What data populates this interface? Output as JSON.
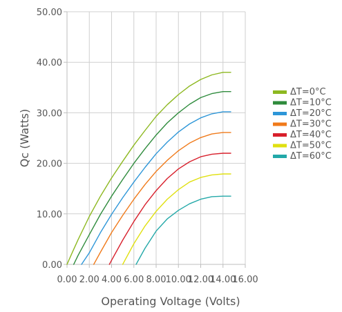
{
  "chart_data": {
    "type": "line",
    "title": "",
    "xlabel": "Operating Voltage (Volts)",
    "ylabel": "Qc (Watts)",
    "xlim": [
      0,
      16
    ],
    "ylim": [
      0,
      50
    ],
    "x_ticks": [
      0,
      2,
      4,
      6,
      8,
      10,
      12,
      14,
      16
    ],
    "y_ticks": [
      0,
      10,
      20,
      30,
      40,
      50
    ],
    "x_tick_labels": [
      "0.00",
      "2.00",
      "4.00",
      "6.00",
      "8.00",
      "10.00",
      "12.00",
      "14.00",
      "16.00"
    ],
    "y_tick_labels": [
      "0.00",
      "10.00",
      "20.00",
      "30.00",
      "40.00",
      "50.00"
    ],
    "grid": true,
    "legend_position": "right",
    "series": [
      {
        "name": "ΔT=0°C",
        "color": "#8db820",
        "x": [
          0.0,
          0.5,
          1.0,
          2.0,
          3.0,
          4.0,
          5.0,
          6.0,
          7.0,
          8.0,
          9.0,
          10.0,
          11.0,
          12.0,
          13.0,
          14.0,
          14.7
        ],
        "y": [
          0.0,
          2.5,
          4.9,
          9.5,
          13.5,
          17.1,
          20.4,
          23.6,
          26.5,
          29.3,
          31.6,
          33.6,
          35.3,
          36.6,
          37.5,
          38.0,
          38.0
        ]
      },
      {
        "name": "ΔT=10°C",
        "color": "#2e8b3c",
        "x": [
          0.6,
          1.0,
          2.0,
          3.0,
          4.0,
          5.0,
          6.0,
          7.0,
          8.0,
          9.0,
          10.0,
          11.0,
          12.0,
          13.0,
          14.0,
          14.7
        ],
        "y": [
          0.0,
          1.8,
          5.9,
          9.9,
          13.5,
          16.8,
          20.0,
          22.9,
          25.6,
          28.0,
          30.0,
          31.7,
          33.0,
          33.8,
          34.2,
          34.2
        ]
      },
      {
        "name": "ΔT=20°C",
        "color": "#2d96d8",
        "x": [
          1.3,
          2.0,
          3.0,
          4.0,
          5.0,
          6.0,
          7.0,
          8.0,
          9.0,
          10.0,
          11.0,
          12.0,
          13.0,
          14.0,
          14.7
        ],
        "y": [
          0.0,
          2.3,
          6.3,
          9.9,
          13.2,
          16.3,
          19.2,
          21.9,
          24.2,
          26.2,
          27.8,
          29.0,
          29.8,
          30.2,
          30.2
        ]
      },
      {
        "name": "ΔT=30°C",
        "color": "#f07a1a",
        "x": [
          2.4,
          3.0,
          4.0,
          5.0,
          6.0,
          7.0,
          8.0,
          9.0,
          10.0,
          11.0,
          12.0,
          13.0,
          14.0,
          14.7
        ],
        "y": [
          0.0,
          2.4,
          6.3,
          9.7,
          12.9,
          15.8,
          18.4,
          20.6,
          22.5,
          24.0,
          25.1,
          25.8,
          26.1,
          26.1
        ]
      },
      {
        "name": "ΔT=40°C",
        "color": "#d81f2b",
        "x": [
          3.8,
          4.0,
          5.0,
          6.0,
          7.0,
          8.0,
          9.0,
          10.0,
          11.0,
          12.0,
          13.0,
          14.0,
          14.7
        ],
        "y": [
          0.0,
          0.8,
          4.8,
          8.5,
          11.8,
          14.6,
          17.0,
          18.9,
          20.3,
          21.3,
          21.8,
          22.0,
          22.0
        ]
      },
      {
        "name": "ΔT=50°C",
        "color": "#e0e010",
        "x": [
          5.0,
          6.0,
          7.0,
          8.0,
          9.0,
          10.0,
          11.0,
          12.0,
          13.0,
          14.0,
          14.7
        ],
        "y": [
          0.0,
          4.1,
          7.6,
          10.5,
          12.9,
          14.8,
          16.3,
          17.2,
          17.7,
          17.9,
          17.9
        ]
      },
      {
        "name": "ΔT=60°C",
        "color": "#22a8a8",
        "x": [
          6.2,
          7.0,
          8.0,
          9.0,
          10.0,
          11.0,
          12.0,
          13.0,
          14.0,
          14.7
        ],
        "y": [
          0.0,
          3.2,
          6.6,
          9.0,
          10.7,
          12.0,
          12.9,
          13.4,
          13.5,
          13.5
        ]
      }
    ]
  }
}
